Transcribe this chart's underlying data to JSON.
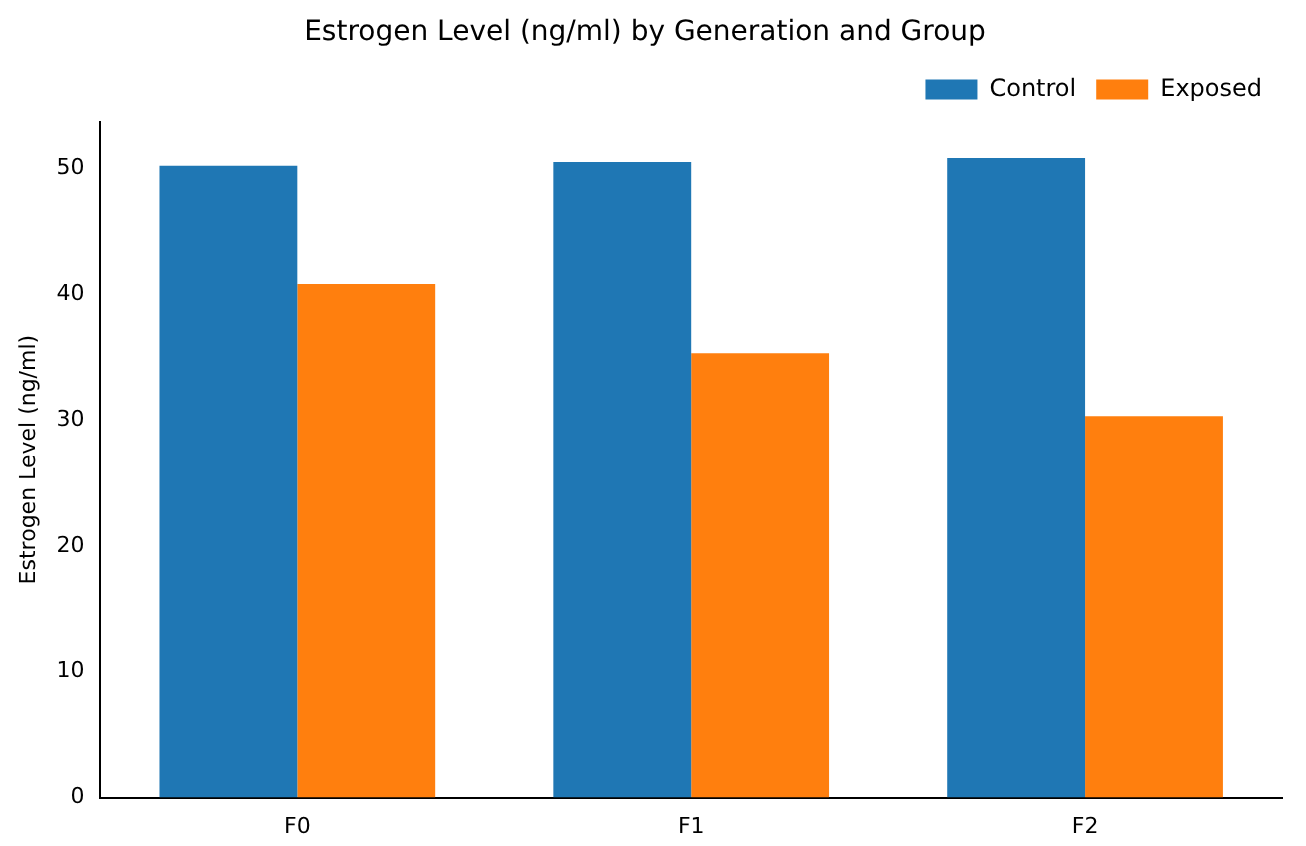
{
  "chart_data": {
    "type": "bar",
    "title": "Estrogen Level (ng/ml) by Generation and Group",
    "ylabel": "Estrogen Level (ng/ml)",
    "categories": [
      "F0",
      "F1",
      "F2"
    ],
    "series": [
      {
        "name": "Control",
        "color": "#1f77b4",
        "values": [
          50.2,
          50.5,
          50.8
        ]
      },
      {
        "name": "Exposed",
        "color": "#ff7f0e",
        "values": [
          40.8,
          35.3,
          30.3
        ]
      }
    ],
    "ylim": [
      0,
      53.7
    ],
    "yticks": [
      0,
      10,
      20,
      30,
      40,
      50
    ],
    "grid": false,
    "legend": "top right"
  }
}
